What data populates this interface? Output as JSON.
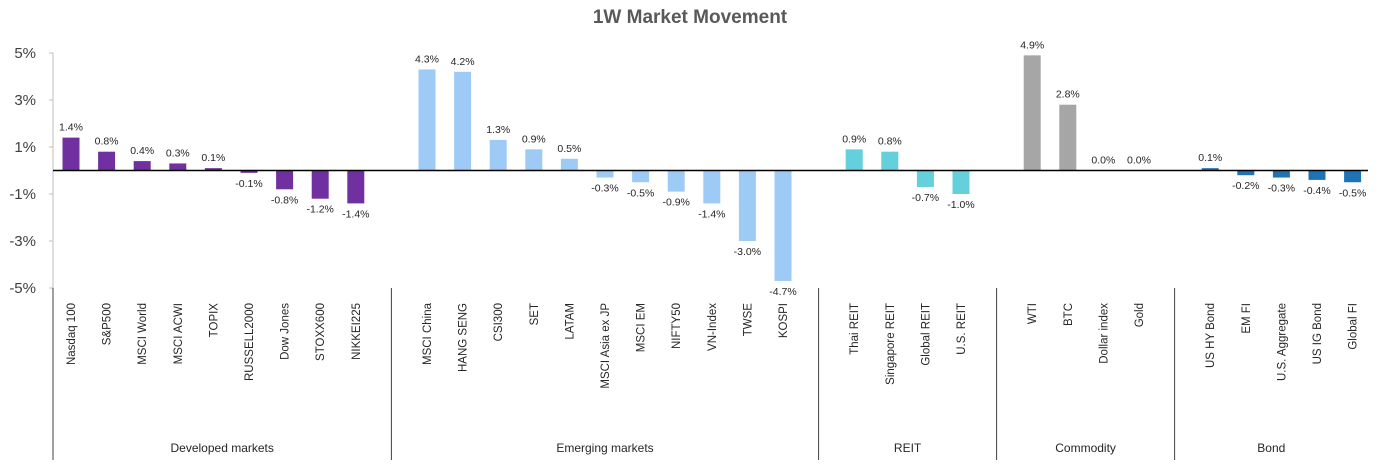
{
  "chart_data": {
    "type": "bar",
    "title": "1W Market Movement",
    "xlabel": "",
    "ylabel": "",
    "ylim": [
      -5,
      5
    ],
    "yticks": [
      5,
      3,
      1,
      -1,
      -3,
      -5
    ],
    "ytick_labels": [
      "5%",
      "3%",
      "1%",
      "-1%",
      "-3%",
      "-5%"
    ],
    "grid": false,
    "legend": "none",
    "groups": [
      {
        "name": "Developed  markets",
        "color": "#7030A0",
        "categories": [
          "Nasdaq 100",
          "S&P500",
          "MSCI World",
          "MSCI ACWI",
          "TOPIX",
          "RUSSELL2000",
          "Dow Jones",
          "STOXX600",
          "NIKKEI225"
        ],
        "values": [
          1.4,
          0.8,
          0.4,
          0.3,
          0.1,
          -0.1,
          -0.8,
          -1.2,
          -1.4
        ],
        "labels": [
          "1.4%",
          "0.8%",
          "0.4%",
          "0.3%",
          "0.1%",
          "-0.1%",
          "-0.8%",
          "-1.2%",
          "-1.4%"
        ]
      },
      {
        "name": "Emerging markets",
        "color": "#9DCBF5",
        "categories": [
          "MSCI China",
          "HANG SENG",
          "CSI300",
          "SET",
          "LATAM",
          "MSCI Asia ex JP",
          "MSCI EM",
          "NIFTY50",
          "VN-Index",
          "TWSE",
          "KOSPI"
        ],
        "values": [
          4.3,
          4.2,
          1.3,
          0.9,
          0.5,
          -0.3,
          -0.5,
          -0.9,
          -1.4,
          -3.0,
          -4.7
        ],
        "labels": [
          "4.3%",
          "4.2%",
          "1.3%",
          "0.9%",
          "0.5%",
          "-0.3%",
          "-0.5%",
          "-0.9%",
          "-1.4%",
          "-3.0%",
          "-4.7%"
        ]
      },
      {
        "name": "REIT",
        "color": "#63D0DC",
        "categories": [
          "Thai REIT",
          "Singapore REIT",
          "Global REIT",
          "U.S. REIT"
        ],
        "values": [
          0.9,
          0.8,
          -0.7,
          -1.0
        ],
        "labels": [
          "0.9%",
          "0.8%",
          "-0.7%",
          "-1.0%"
        ]
      },
      {
        "name": "Commodity",
        "color": "#A6A6A6",
        "categories": [
          "WTI",
          "BTC",
          "Dollar index",
          "Gold"
        ],
        "values": [
          4.9,
          2.8,
          0.0,
          0.0
        ],
        "labels": [
          "4.9%",
          "2.8%",
          "0.0%",
          "0.0%"
        ]
      },
      {
        "name": "Bond",
        "color": "#1F73B4",
        "categories": [
          "US HY Bond",
          "EM FI",
          "U.S. Aggregate",
          "US IG Bond",
          "Global FI"
        ],
        "values": [
          0.1,
          -0.2,
          -0.3,
          -0.4,
          -0.5
        ],
        "labels": [
          "0.1%",
          "-0.2%",
          "-0.3%",
          "-0.4%",
          "-0.5%"
        ]
      }
    ]
  }
}
